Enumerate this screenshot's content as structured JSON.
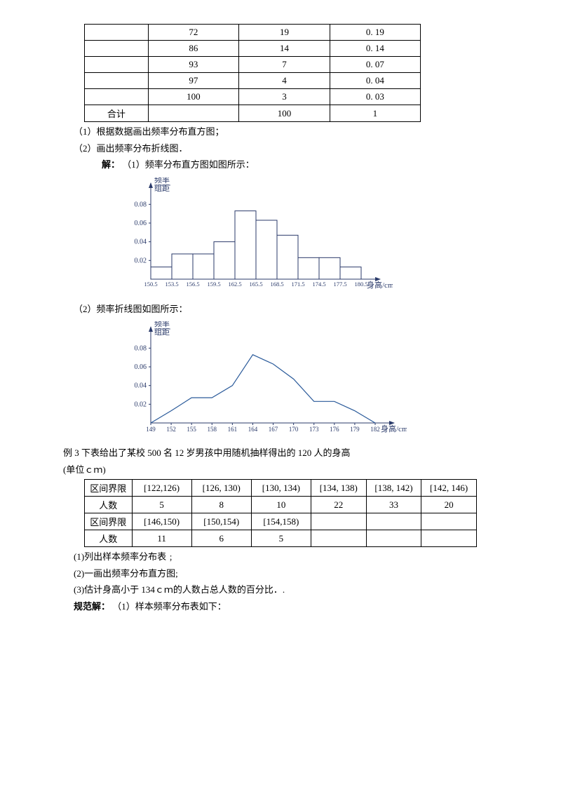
{
  "table1": {
    "rows": [
      [
        "",
        "72",
        "19",
        "0. 19"
      ],
      [
        "",
        "86",
        "14",
        "0. 14"
      ],
      [
        "",
        "93",
        "7",
        "0. 07"
      ],
      [
        "",
        "97",
        "4",
        "0. 04"
      ],
      [
        "",
        "100",
        "3",
        "0. 03"
      ],
      [
        "合计",
        "",
        "100",
        "1"
      ]
    ]
  },
  "text": {
    "q1": "（1）根据数据画出频率分布直方图；",
    "q2": "（2）画出频率分布折线图．",
    "ans_label": "解：",
    "ans1": "（1）频率分布直方图如图所示：",
    "ans2": "（2）频率折线图如图所示：",
    "ex3_title": "例 3 下表给出了某校 500 名 12 岁男孩中用随机抽样得出的 120 人的身高",
    "ex3_unit": "(单位ｃｍ)",
    "ex3_q1": "(1)列出样本频率分布表﹔",
    "ex3_q2": "(2)一画出频率分布直方图;",
    "ex3_q3": "(3)估计身高小于 134ｃｍ的人数占总人数的百分比．.",
    "ex3_ans_label": "规范解：",
    "ex3_ans1": "（1）样本频率分布表如下："
  },
  "histogram": {
    "ylabel_top": "频率",
    "ylabel_bot": "组距",
    "xlabel": "身高/cm",
    "yticks": [
      0.02,
      0.04,
      0.06,
      0.08
    ],
    "xticks": [
      "150.5",
      "153.5",
      "156.5",
      "159.5",
      "162.5",
      "165.5",
      "168.5",
      "171.5",
      "174.5",
      "177.5",
      "180.5"
    ],
    "bars": [
      0.013,
      0.027,
      0.027,
      0.04,
      0.073,
      0.063,
      0.047,
      0.023,
      0.023,
      0.013
    ],
    "ylim": 0.09,
    "bar_edge_color": "#2a3a6a",
    "bar_fill": "#ffffff",
    "axis_color": "#2a3a6a",
    "text_color": "#2a3a6a"
  },
  "linechart": {
    "ylabel_top": "频率",
    "ylabel_bot": "组距",
    "xlabel": "身高/cm",
    "yticks": [
      0.02,
      0.04,
      0.06,
      0.08
    ],
    "xticks": [
      "149",
      "152",
      "155",
      "158",
      "161",
      "164",
      "167",
      "170",
      "173",
      "176",
      "179",
      "182"
    ],
    "points": [
      [
        0,
        0
      ],
      [
        1,
        0.013
      ],
      [
        2,
        0.027
      ],
      [
        3,
        0.027
      ],
      [
        4,
        0.04
      ],
      [
        5,
        0.073
      ],
      [
        6,
        0.063
      ],
      [
        7,
        0.047
      ],
      [
        8,
        0.023
      ],
      [
        9,
        0.023
      ],
      [
        10,
        0.013
      ],
      [
        11,
        0
      ]
    ],
    "ylim": 0.09,
    "line_color": "#2a5a9a",
    "axis_color": "#2a3a6a",
    "text_color": "#2a3a6a"
  },
  "table2": {
    "row1_label": "区间界限",
    "row1": [
      "[122,126)",
      "[126, 130)",
      "[130, 134)",
      "[134, 138)",
      "[138, 142)",
      "[142, 146)"
    ],
    "row2_label": "人数",
    "row2": [
      "5",
      "8",
      "10",
      "22",
      "33",
      "20"
    ],
    "row3_label": "区间界限",
    "row3": [
      "[146,150)",
      "[150,154)",
      "[154,158)",
      "",
      "",
      ""
    ],
    "row4_label": "人数",
    "row4": [
      "11",
      "6",
      "5",
      "",
      "",
      ""
    ]
  }
}
